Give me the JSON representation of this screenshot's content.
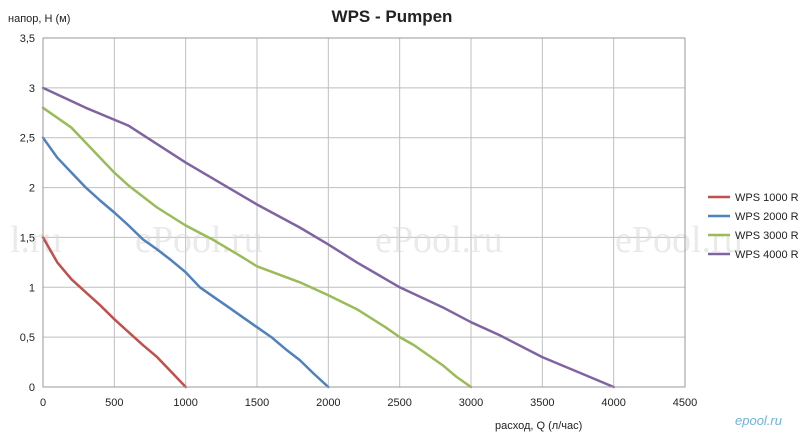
{
  "chart_data": {
    "type": "line",
    "title": "WPS - Pumpen",
    "ylabel": "напор, H (м)",
    "xlabel": "расход, Q (л/час)",
    "xlim": [
      0,
      4500
    ],
    "ylim": [
      0,
      3.5
    ],
    "x_ticks": [
      "0",
      "500",
      "1000",
      "1500",
      "2000",
      "2500",
      "3000",
      "3500",
      "4000",
      "4500"
    ],
    "y_ticks": [
      "0",
      "0,5",
      "1",
      "1,5",
      "2",
      "2,5",
      "3",
      "3,5"
    ],
    "x_tick_values": [
      0,
      500,
      1000,
      1500,
      2000,
      2500,
      3000,
      3500,
      4000,
      4500
    ],
    "y_tick_values": [
      0,
      0.5,
      1,
      1.5,
      2,
      2.5,
      3,
      3.5
    ],
    "grid": true,
    "legend_position": "right",
    "series": [
      {
        "name": "WPS 1000 R",
        "color": "#c0504d",
        "points": [
          [
            0,
            1.5
          ],
          [
            100,
            1.25
          ],
          [
            200,
            1.08
          ],
          [
            300,
            0.95
          ],
          [
            400,
            0.82
          ],
          [
            500,
            0.68
          ],
          [
            600,
            0.55
          ],
          [
            700,
            0.42
          ],
          [
            800,
            0.3
          ],
          [
            900,
            0.15
          ],
          [
            1000,
            0
          ]
        ]
      },
      {
        "name": "WPS 2000 R",
        "color": "#4f81bd",
        "points": [
          [
            0,
            2.5
          ],
          [
            100,
            2.3
          ],
          [
            200,
            2.15
          ],
          [
            300,
            2.0
          ],
          [
            400,
            1.87
          ],
          [
            500,
            1.75
          ],
          [
            600,
            1.62
          ],
          [
            700,
            1.48
          ],
          [
            800,
            1.38
          ],
          [
            900,
            1.27
          ],
          [
            1000,
            1.15
          ],
          [
            1100,
            1.0
          ],
          [
            1200,
            0.9
          ],
          [
            1300,
            0.8
          ],
          [
            1400,
            0.7
          ],
          [
            1500,
            0.6
          ],
          [
            1600,
            0.5
          ],
          [
            1700,
            0.38
          ],
          [
            1800,
            0.27
          ],
          [
            1900,
            0.13
          ],
          [
            2000,
            0
          ]
        ]
      },
      {
        "name": "WPS 3000 R",
        "color": "#9bbb59",
        "points": [
          [
            0,
            2.8
          ],
          [
            200,
            2.6
          ],
          [
            400,
            2.3
          ],
          [
            500,
            2.15
          ],
          [
            600,
            2.02
          ],
          [
            800,
            1.8
          ],
          [
            1000,
            1.62
          ],
          [
            1200,
            1.47
          ],
          [
            1400,
            1.3
          ],
          [
            1500,
            1.21
          ],
          [
            1800,
            1.05
          ],
          [
            2000,
            0.92
          ],
          [
            2200,
            0.78
          ],
          [
            2400,
            0.6
          ],
          [
            2500,
            0.5
          ],
          [
            2600,
            0.42
          ],
          [
            2700,
            0.32
          ],
          [
            2800,
            0.22
          ],
          [
            2900,
            0.1
          ],
          [
            3000,
            0
          ]
        ]
      },
      {
        "name": "WPS 4000 R",
        "color": "#8064a2",
        "points": [
          [
            0,
            3.0
          ],
          [
            300,
            2.8
          ],
          [
            600,
            2.62
          ],
          [
            1000,
            2.25
          ],
          [
            1500,
            1.83
          ],
          [
            1800,
            1.6
          ],
          [
            2000,
            1.43
          ],
          [
            2200,
            1.25
          ],
          [
            2500,
            1.0
          ],
          [
            2800,
            0.8
          ],
          [
            3000,
            0.65
          ],
          [
            3200,
            0.52
          ],
          [
            3500,
            0.3
          ],
          [
            3800,
            0.12
          ],
          [
            4000,
            0
          ]
        ]
      }
    ]
  },
  "watermarks": {
    "site": [
      "l.ru",
      "ePool.ru",
      "ePool.ru",
      "ePool.ru"
    ],
    "corner_logo": "epool.ru"
  }
}
